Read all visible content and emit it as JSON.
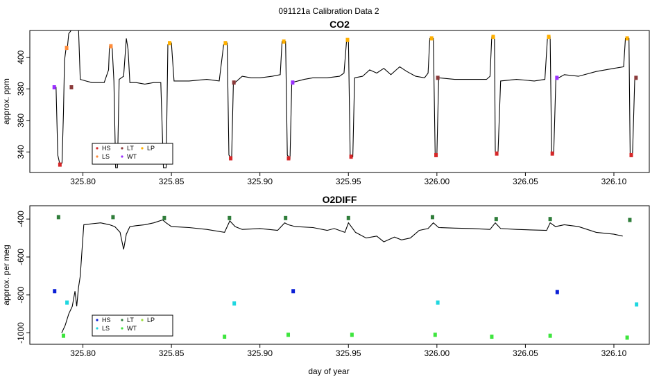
{
  "title": "091121a   Calibration Data 2",
  "xlabel": "day of year",
  "colors": {
    "HS": "#d62728",
    "LS": "#ff8c3a",
    "LT": "#8b3a3a",
    "WT": "#9b30ff",
    "LP": "#ffb000",
    "O2_HS": "#0b1fd6",
    "O2_LS": "#1fd7e0",
    "O2_LT": "#2f7d3a",
    "O2_WT": "#3ee53e",
    "O2_LP": "#9adf3a",
    "trace": "#000000"
  },
  "chart_data": [
    {
      "type": "line",
      "title": "CO2",
      "ylabel": "approx. ppm",
      "xlim": [
        325.77,
        326.12
      ],
      "ylim": [
        327,
        417
      ],
      "xticks": [
        "325.80",
        "325.85",
        "325.90",
        "325.95",
        "326.00",
        "326.05",
        "326.10"
      ],
      "xtick_values": [
        325.8,
        325.85,
        325.9,
        325.95,
        326.0,
        326.05,
        326.1
      ],
      "yticks": [
        "340",
        "360",
        "380",
        "400"
      ],
      "ytick_values": [
        340,
        360,
        380,
        400
      ],
      "legend": [
        "HS",
        "LT",
        "LP",
        "LS",
        "WT"
      ],
      "legend_position": "bottom-left",
      "trace": [
        [
          325.7835,
          381
        ],
        [
          325.7848,
          381
        ],
        [
          325.7858,
          338
        ],
        [
          325.787,
          332
        ],
        [
          325.7882,
          333
        ],
        [
          325.789,
          365
        ],
        [
          325.7896,
          398
        ],
        [
          325.7905,
          406
        ],
        [
          325.7912,
          406
        ],
        [
          325.792,
          415
        ],
        [
          325.794,
          418
        ],
        [
          325.796,
          418
        ],
        [
          325.7975,
          418
        ],
        [
          325.7985,
          386
        ],
        [
          325.805,
          384
        ],
        [
          325.812,
          384
        ],
        [
          325.8145,
          392
        ],
        [
          325.815,
          407
        ],
        [
          325.8165,
          407
        ],
        [
          325.8175,
          385
        ],
        [
          325.8185,
          330
        ],
        [
          325.8195,
          330
        ],
        [
          325.8205,
          386
        ],
        [
          325.823,
          388
        ],
        [
          325.8245,
          412
        ],
        [
          325.8255,
          405
        ],
        [
          325.8265,
          384
        ],
        [
          325.83,
          384
        ],
        [
          325.835,
          383
        ],
        [
          325.84,
          384
        ],
        [
          325.844,
          384
        ],
        [
          325.8455,
          330
        ],
        [
          325.847,
          330
        ],
        [
          325.848,
          408
        ],
        [
          325.85,
          409
        ],
        [
          325.8515,
          385
        ],
        [
          325.86,
          385
        ],
        [
          325.87,
          386
        ],
        [
          325.877,
          385
        ],
        [
          325.8795,
          408
        ],
        [
          325.8815,
          409
        ],
        [
          325.8825,
          338
        ],
        [
          325.884,
          336
        ],
        [
          325.885,
          383
        ],
        [
          325.89,
          388
        ],
        [
          325.895,
          387
        ],
        [
          325.9,
          387
        ],
        [
          325.907,
          388
        ],
        [
          325.9115,
          389
        ],
        [
          325.9125,
          410
        ],
        [
          325.9145,
          410
        ],
        [
          325.9155,
          338
        ],
        [
          325.917,
          336
        ],
        [
          325.918,
          384
        ],
        [
          325.925,
          386
        ],
        [
          325.93,
          387
        ],
        [
          325.938,
          387
        ],
        [
          325.945,
          388
        ],
        [
          325.9475,
          390
        ],
        [
          325.949,
          411
        ],
        [
          325.95,
          411
        ],
        [
          325.951,
          338
        ],
        [
          325.9525,
          337
        ],
        [
          325.9535,
          387
        ],
        [
          325.958,
          388
        ],
        [
          325.962,
          392
        ],
        [
          325.966,
          390
        ],
        [
          325.97,
          393
        ],
        [
          325.974,
          389
        ],
        [
          325.979,
          394
        ],
        [
          325.983,
          391
        ],
        [
          325.988,
          388
        ],
        [
          325.993,
          387
        ],
        [
          325.995,
          390
        ],
        [
          325.996,
          412
        ],
        [
          325.998,
          412
        ],
        [
          325.999,
          339
        ],
        [
          326.0,
          338
        ],
        [
          326.001,
          387
        ],
        [
          326.01,
          386
        ],
        [
          326.02,
          386
        ],
        [
          326.028,
          386
        ],
        [
          326.03,
          388
        ],
        [
          326.031,
          413
        ],
        [
          326.0325,
          413
        ],
        [
          326.033,
          340
        ],
        [
          326.0345,
          339
        ],
        [
          326.036,
          385
        ],
        [
          326.045,
          386
        ],
        [
          326.055,
          385
        ],
        [
          326.061,
          386
        ],
        [
          326.0625,
          413
        ],
        [
          326.064,
          413
        ],
        [
          326.0648,
          340
        ],
        [
          326.066,
          339
        ],
        [
          326.0672,
          386
        ],
        [
          326.072,
          389
        ],
        [
          326.08,
          388
        ],
        [
          326.09,
          391
        ],
        [
          326.1,
          393
        ],
        [
          326.1055,
          394
        ],
        [
          326.1065,
          412
        ],
        [
          326.1085,
          412
        ],
        [
          326.1092,
          339
        ],
        [
          326.1105,
          338
        ],
        [
          326.1118,
          387
        ],
        [
          326.113,
          387
        ]
      ],
      "markers": [
        {
          "label": "WT",
          "x": 325.7838,
          "y": 381
        },
        {
          "label": "LS",
          "x": 325.7908,
          "y": 406
        },
        {
          "label": "HS",
          "x": 325.787,
          "y": 332
        },
        {
          "label": "LT",
          "x": 325.7935,
          "y": 381
        },
        {
          "label": "LS",
          "x": 325.8158,
          "y": 407
        },
        {
          "label": "LP",
          "x": 325.849,
          "y": 409
        },
        {
          "label": "LP",
          "x": 325.8805,
          "y": 409
        },
        {
          "label": "HS",
          "x": 325.8835,
          "y": 336
        },
        {
          "label": "LT",
          "x": 325.8853,
          "y": 384
        },
        {
          "label": "LP",
          "x": 325.9135,
          "y": 410
        },
        {
          "label": "HS",
          "x": 325.9162,
          "y": 336
        },
        {
          "label": "WT",
          "x": 325.9185,
          "y": 384
        },
        {
          "label": "LP",
          "x": 325.9495,
          "y": 411
        },
        {
          "label": "HS",
          "x": 325.9515,
          "y": 337
        },
        {
          "label": "LP",
          "x": 325.997,
          "y": 412
        },
        {
          "label": "HS",
          "x": 325.9995,
          "y": 338
        },
        {
          "label": "LT",
          "x": 326.0005,
          "y": 387
        },
        {
          "label": "LP",
          "x": 326.0318,
          "y": 413
        },
        {
          "label": "HS",
          "x": 326.0338,
          "y": 339
        },
        {
          "label": "LP",
          "x": 326.0632,
          "y": 413
        },
        {
          "label": "HS",
          "x": 326.0652,
          "y": 339
        },
        {
          "label": "WT",
          "x": 326.0678,
          "y": 387
        },
        {
          "label": "LP",
          "x": 326.1075,
          "y": 412
        },
        {
          "label": "HS",
          "x": 326.1098,
          "y": 338
        },
        {
          "label": "LT",
          "x": 326.1125,
          "y": 387
        }
      ]
    },
    {
      "type": "line",
      "title": "O2DIFF",
      "ylabel": "approx. per meg",
      "xlim": [
        325.77,
        326.12
      ],
      "ylim": [
        -1060,
        -330
      ],
      "xticks": [
        "325.80",
        "325.85",
        "325.90",
        "325.95",
        "326.00",
        "326.05",
        "326.10"
      ],
      "xtick_values": [
        325.8,
        325.85,
        325.9,
        325.95,
        326.0,
        326.05,
        326.1
      ],
      "yticks": [
        "-1000",
        "-800",
        "-600",
        "-400"
      ],
      "ytick_values": [
        -1000,
        -800,
        -600,
        -400
      ],
      "legend": [
        "HS",
        "LT",
        "LP",
        "LS",
        "WT"
      ],
      "legend_position": "bottom-left",
      "trace": [
        [
          325.788,
          -1000
        ],
        [
          325.79,
          -960
        ],
        [
          325.792,
          -900
        ],
        [
          325.794,
          -860
        ],
        [
          325.7955,
          -780
        ],
        [
          325.7965,
          -860
        ],
        [
          325.7975,
          -760
        ],
        [
          325.7985,
          -700
        ],
        [
          325.7995,
          -560
        ],
        [
          325.8005,
          -430
        ],
        [
          325.805,
          -425
        ],
        [
          325.81,
          -420
        ],
        [
          325.815,
          -430
        ],
        [
          325.818,
          -440
        ],
        [
          325.821,
          -470
        ],
        [
          325.823,
          -560
        ],
        [
          325.8245,
          -480
        ],
        [
          325.8265,
          -440
        ],
        [
          325.83,
          -435
        ],
        [
          325.835,
          -430
        ],
        [
          325.84,
          -420
        ],
        [
          325.845,
          -405
        ],
        [
          325.847,
          -420
        ],
        [
          325.85,
          -440
        ],
        [
          325.86,
          -445
        ],
        [
          325.87,
          -455
        ],
        [
          325.88,
          -470
        ],
        [
          325.883,
          -410
        ],
        [
          325.886,
          -440
        ],
        [
          325.89,
          -455
        ],
        [
          325.9,
          -450
        ],
        [
          325.91,
          -460
        ],
        [
          325.914,
          -420
        ],
        [
          325.916,
          -430
        ],
        [
          325.92,
          -440
        ],
        [
          325.93,
          -445
        ],
        [
          325.938,
          -460
        ],
        [
          325.942,
          -450
        ],
        [
          325.948,
          -470
        ],
        [
          325.95,
          -420
        ],
        [
          325.954,
          -470
        ],
        [
          325.96,
          -500
        ],
        [
          325.966,
          -490
        ],
        [
          325.97,
          -520
        ],
        [
          325.976,
          -495
        ],
        [
          325.98,
          -510
        ],
        [
          325.985,
          -500
        ],
        [
          325.99,
          -460
        ],
        [
          325.995,
          -450
        ],
        [
          325.998,
          -420
        ],
        [
          326.001,
          -445
        ],
        [
          326.01,
          -448
        ],
        [
          326.02,
          -450
        ],
        [
          326.03,
          -455
        ],
        [
          326.033,
          -420
        ],
        [
          326.036,
          -450
        ],
        [
          326.045,
          -455
        ],
        [
          326.055,
          -458
        ],
        [
          326.062,
          -460
        ],
        [
          326.064,
          -420
        ],
        [
          326.067,
          -440
        ],
        [
          326.072,
          -430
        ],
        [
          326.08,
          -440
        ],
        [
          326.09,
          -470
        ],
        [
          326.1,
          -480
        ],
        [
          326.105,
          -490
        ]
      ],
      "markers": [
        {
          "label": "O2_HS",
          "x": 325.784,
          "y": -780
        },
        {
          "label": "O2_LT",
          "x": 325.7862,
          "y": -390
        },
        {
          "label": "O2_LS",
          "x": 325.791,
          "y": -840
        },
        {
          "label": "O2_WT",
          "x": 325.789,
          "y": -1015
        },
        {
          "label": "O2_LT",
          "x": 325.817,
          "y": -390
        },
        {
          "label": "O2_LT",
          "x": 325.846,
          "y": -395
        },
        {
          "label": "O2_WT",
          "x": 325.88,
          "y": -1020
        },
        {
          "label": "O2_LT",
          "x": 325.8828,
          "y": -395
        },
        {
          "label": "O2_LS",
          "x": 325.8855,
          "y": -845
        },
        {
          "label": "O2_WT",
          "x": 325.916,
          "y": -1010
        },
        {
          "label": "O2_LT",
          "x": 325.9145,
          "y": -395
        },
        {
          "label": "O2_HS",
          "x": 325.9188,
          "y": -780
        },
        {
          "label": "O2_WT",
          "x": 325.952,
          "y": -1010
        },
        {
          "label": "O2_LT",
          "x": 325.95,
          "y": -395
        },
        {
          "label": "O2_LT",
          "x": 325.9975,
          "y": -390
        },
        {
          "label": "O2_WT",
          "x": 325.999,
          "y": -1010
        },
        {
          "label": "O2_LS",
          "x": 326.0005,
          "y": -840
        },
        {
          "label": "O2_WT",
          "x": 326.031,
          "y": -1020
        },
        {
          "label": "O2_LT",
          "x": 326.0335,
          "y": -400
        },
        {
          "label": "O2_WT",
          "x": 326.064,
          "y": -1015
        },
        {
          "label": "O2_LT",
          "x": 326.064,
          "y": -400
        },
        {
          "label": "O2_HS",
          "x": 326.068,
          "y": -785
        },
        {
          "label": "O2_WT",
          "x": 326.1075,
          "y": -1025
        },
        {
          "label": "O2_LT",
          "x": 326.109,
          "y": -405
        },
        {
          "label": "O2_LS",
          "x": 326.1128,
          "y": -850
        }
      ]
    }
  ]
}
